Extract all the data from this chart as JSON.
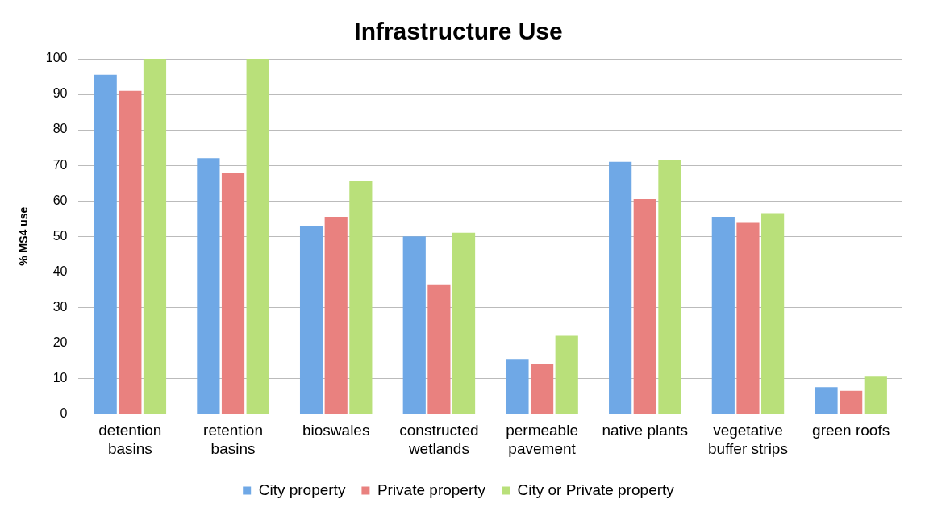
{
  "chart_data": {
    "type": "bar",
    "title": "Infrastructure Use",
    "ylabel": "% MS4 use",
    "categories": [
      "detention basins",
      "retention basins",
      "bioswales",
      "constructed wetlands",
      "permeable pavement",
      "native plants",
      "vegetative buffer strips",
      "green roofs"
    ],
    "series": [
      {
        "name": "City property",
        "color": "#6fa8e6",
        "values": [
          95.5,
          72,
          53,
          50,
          15.5,
          71,
          55.5,
          7.5
        ]
      },
      {
        "name": "Private property",
        "color": "#e9817f",
        "values": [
          91,
          68,
          55.5,
          36.5,
          14,
          60.5,
          54,
          6.5
        ]
      },
      {
        "name": "City or Private property",
        "color": "#b9e07a",
        "values": [
          100,
          100,
          65.5,
          51,
          22,
          71.5,
          56.5,
          10.5
        ]
      }
    ],
    "ylim": [
      0,
      100
    ],
    "yticks": [
      0,
      10,
      20,
      30,
      40,
      50,
      60,
      70,
      80,
      90,
      100
    ],
    "grid": "y",
    "legend": "bottom"
  }
}
